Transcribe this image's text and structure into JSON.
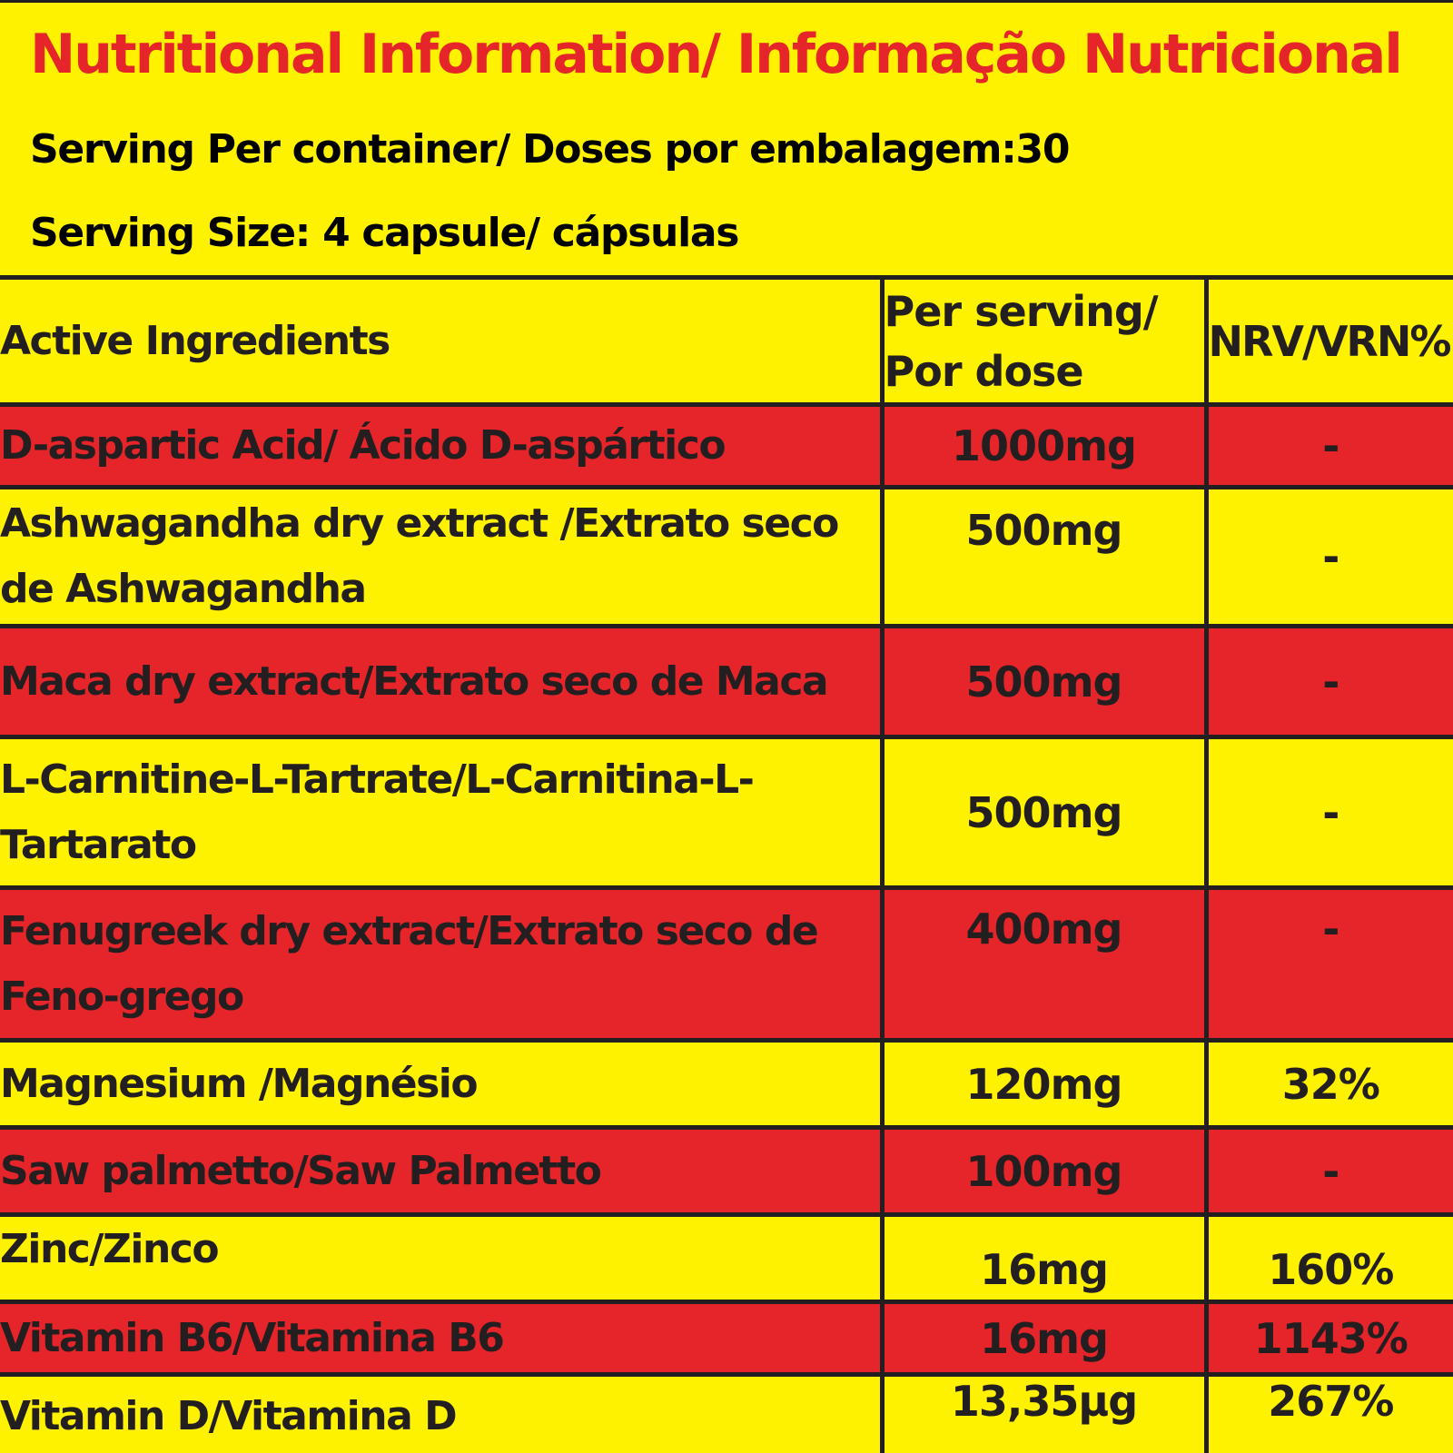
{
  "header": {
    "title": "Nutritional Information/ Informação Nutricional",
    "servings_per_container": "Serving Per container/ Doses por embalagem:30",
    "serving_size": "Serving Size: 4 capsule/ cápsulas"
  },
  "table": {
    "columns": {
      "ingredient": "Active Ingredients",
      "per_serving": "Per serving/ Por dose",
      "nrv": "NRV/VRN%"
    },
    "rows": [
      {
        "ingredient": "D-aspartic Acid/ Ácido D-aspártico",
        "amount": "1000mg",
        "nrv": "-"
      },
      {
        "ingredient": "Ashwagandha dry extract /Extrato seco de Ashwagandha",
        "amount": "500mg",
        "nrv": "-"
      },
      {
        "ingredient": "Maca dry extract/Extrato seco de Maca",
        "amount": "500mg",
        "nrv": "-"
      },
      {
        "ingredient": "L-Carnitine-L-Tartrate/L-Carnitina-L-Tartarato",
        "amount": "500mg",
        "nrv": "-"
      },
      {
        "ingredient": "Fenugreek dry extract/Extrato seco de Feno-grego",
        "amount": "400mg",
        "nrv": "-"
      },
      {
        "ingredient": "Magnesium /Magnésio",
        "amount": "120mg",
        "nrv": "32%"
      },
      {
        "ingredient": "Saw palmetto/Saw Palmetto",
        "amount": "100mg",
        "nrv": "-"
      },
      {
        "ingredient": "Zinc/Zinco",
        "amount": "16mg",
        "nrv": "160%"
      },
      {
        "ingredient": "Vitamin B6/Vitamina B6",
        "amount": "16mg",
        "nrv": "1143%"
      },
      {
        "ingredient": "Vitamin D/Vitamina D",
        "amount": "13,35µg",
        "nrv": "267%"
      }
    ]
  },
  "colors": {
    "background_yellow": "#fff200",
    "accent_red": "#e5252a",
    "text_dark": "#231f20"
  }
}
